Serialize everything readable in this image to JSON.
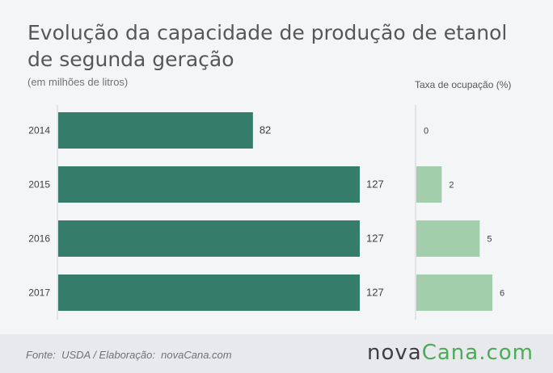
{
  "header": {
    "title": "Evolução da capacidade de produção de etanol de segunda geração",
    "subtitle": "(em milhões de litros)",
    "occupancy_title": "Taxa de ocupação (%)"
  },
  "chart_data": {
    "type": "bar",
    "orientation": "horizontal",
    "categories": [
      "2014",
      "2015",
      "2016",
      "2017"
    ],
    "series": [
      {
        "values": [
          82,
          127,
          127,
          127
        ],
        "color": "#357c6a",
        "label_colors": "#3d3f42"
      },
      {
        "values": [
          0,
          2,
          5,
          6
        ],
        "color": "#a2ceab"
      }
    ],
    "title": "Evolução da capacidade de produção de etanol de segunda geração",
    "subtitle": "(em milhões de litros)",
    "xlabel": "",
    "ylabel": ""
  },
  "footer": {
    "source": "Fonte:  USDA / Elaboração:  novaCana.com",
    "logo_part1": "nova",
    "logo_part2": "Cana",
    "logo_part3": ".com",
    "logo_colors": {
      "dark": "#3d3f42",
      "green": "#4daa57"
    }
  }
}
